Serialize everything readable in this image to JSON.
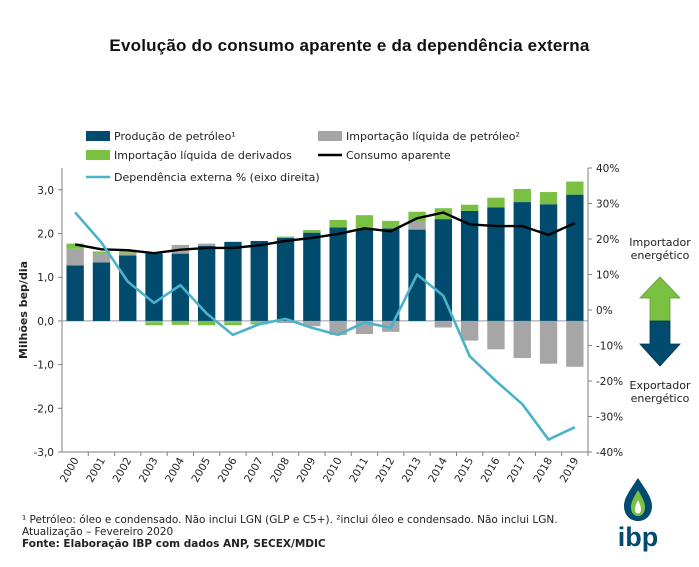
{
  "chart_data": {
    "type": "bar",
    "title": "Evolução  do consumo  aparente e da dependência  externa",
    "ylabel": "Milhões bep/dia",
    "ylim": [
      -3,
      3.5
    ],
    "y2lim": [
      -40,
      40
    ],
    "yticks": [
      "3,0",
      "2,0",
      "1,0",
      "0,0",
      "-1,0",
      "-2,0",
      "-3,0"
    ],
    "y2ticks": [
      "40%",
      "30%",
      "20%",
      "10%",
      "0%",
      "-10%",
      "-20%",
      "-30%",
      "-40%"
    ],
    "categories": [
      "2000",
      "2001",
      "2002",
      "2003",
      "2004",
      "2005",
      "2006",
      "2007",
      "2008",
      "2009",
      "2010",
      "2011",
      "2012",
      "2013",
      "2014",
      "2015",
      "2016",
      "2017",
      "2018",
      "2019"
    ],
    "series": [
      {
        "name": "Produção de petróleo¹",
        "type": "bar",
        "color": "#004b6e",
        "values": [
          1.27,
          1.34,
          1.5,
          1.54,
          1.54,
          1.72,
          1.81,
          1.83,
          1.9,
          2.02,
          2.14,
          2.11,
          2.12,
          2.09,
          2.33,
          2.52,
          2.6,
          2.72,
          2.67,
          2.89
        ]
      },
      {
        "name": "Importação líquida de petróleo²",
        "type": "bar",
        "color": "#a6a6a6",
        "values": [
          0.38,
          0.2,
          0.06,
          -0.03,
          0.2,
          0.05,
          -0.03,
          -0.03,
          -0.05,
          -0.12,
          -0.32,
          -0.3,
          -0.25,
          0.18,
          -0.15,
          -0.45,
          -0.65,
          -0.85,
          -0.98,
          -1.05
        ]
      },
      {
        "name": "Importação líquida de derivados",
        "type": "bar",
        "color": "#7ac143",
        "values": [
          0.12,
          0.05,
          0.04,
          -0.07,
          -0.09,
          -0.1,
          -0.07,
          -0.05,
          0.03,
          0.06,
          0.17,
          0.31,
          0.17,
          0.23,
          0.25,
          0.14,
          0.22,
          0.3,
          0.28,
          0.3
        ]
      },
      {
        "name": "Consumo aparente",
        "type": "line",
        "color": "#000000",
        "axis": "left",
        "values": [
          1.75,
          1.64,
          1.62,
          1.55,
          1.63,
          1.67,
          1.67,
          1.73,
          1.83,
          1.9,
          1.99,
          2.12,
          2.05,
          2.35,
          2.48,
          2.21,
          2.17,
          2.17,
          1.97,
          2.24
        ]
      },
      {
        "name": "Dependência externa % (eixo direita)",
        "type": "line",
        "color": "#4ab3c9",
        "axis": "right",
        "values": [
          27.5,
          19,
          8,
          2,
          7,
          -1,
          -7,
          -4,
          -2.5,
          -5,
          -7,
          -3.5,
          -5,
          10,
          4,
          -13,
          -20,
          -26.5,
          -36.5,
          -33
        ]
      }
    ],
    "legend_placement": "top-left",
    "annotations": {
      "importer": [
        "Importador",
        "energético"
      ],
      "exporter": [
        "Exportador",
        "energético"
      ]
    },
    "grid": false
  },
  "footnotes": {
    "line1": "¹ Petróleo: óleo e condensado. Não inclui LGN (GLP e C5+). ²inclui óleo e condensado. Não inclui LGN.",
    "line2": "Atualização – Fevereiro 2020",
    "source": "Fonte: Elaboração IBP com dados ANP, SECEX/MDIC"
  },
  "logo": {
    "text": "ibp"
  }
}
